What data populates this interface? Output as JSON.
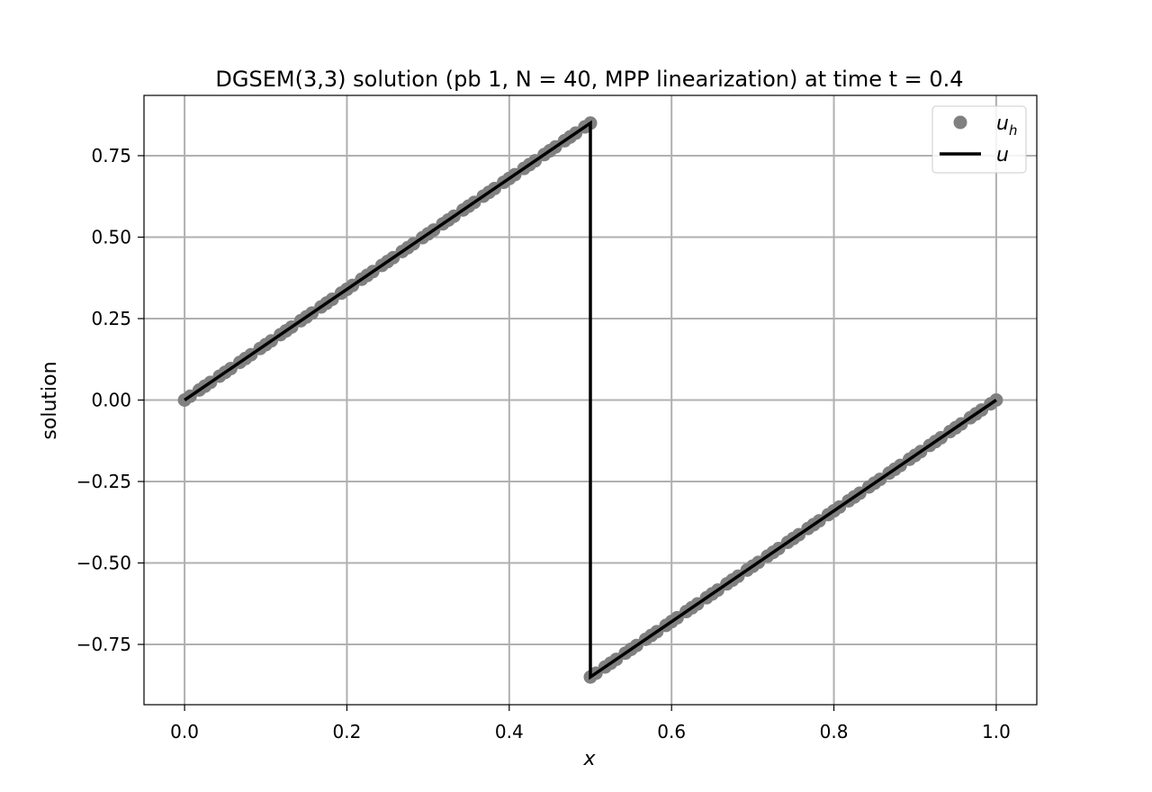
{
  "chart_data": {
    "type": "line",
    "title": "DGSEM(3,3) solution (pb 1, N = 40, MPP linearization) at time t = 0.4",
    "xlabel": "x",
    "ylabel": "solution",
    "xlim": [
      -0.05,
      1.05
    ],
    "ylim": [
      -0.935,
      0.935
    ],
    "x_ticks": [
      0.0,
      0.2,
      0.4,
      0.6,
      0.8,
      1.0
    ],
    "x_tick_labels": [
      "0.0",
      "0.2",
      "0.4",
      "0.6",
      "0.8",
      "1.0"
    ],
    "y_ticks": [
      -0.75,
      -0.5,
      -0.25,
      0.0,
      0.25,
      0.5,
      0.75
    ],
    "y_tick_labels": [
      "−0.75",
      "−0.50",
      "−0.25",
      "0.00",
      "0.25",
      "0.50",
      "0.75"
    ],
    "grid": true,
    "legend_position": "top-right",
    "shock_x": 0.5,
    "slope": 1.7,
    "num_cells": 40,
    "points_per_cell": 4,
    "series": [
      {
        "name": "u",
        "name_subscript": "h",
        "kind": "scatter",
        "color": "#808080",
        "description_points": "DG nodal values: 4 Gauss-Lobatto-type points per cell, u_h = 1.7x for x<0.5 and 1.7(x-1) for x>0.5"
      },
      {
        "name": "u",
        "kind": "line",
        "color": "#000000",
        "x": [
          0.0,
          0.5,
          0.5,
          1.0
        ],
        "y": [
          0.0,
          0.85,
          -0.85,
          0.0
        ]
      }
    ]
  }
}
